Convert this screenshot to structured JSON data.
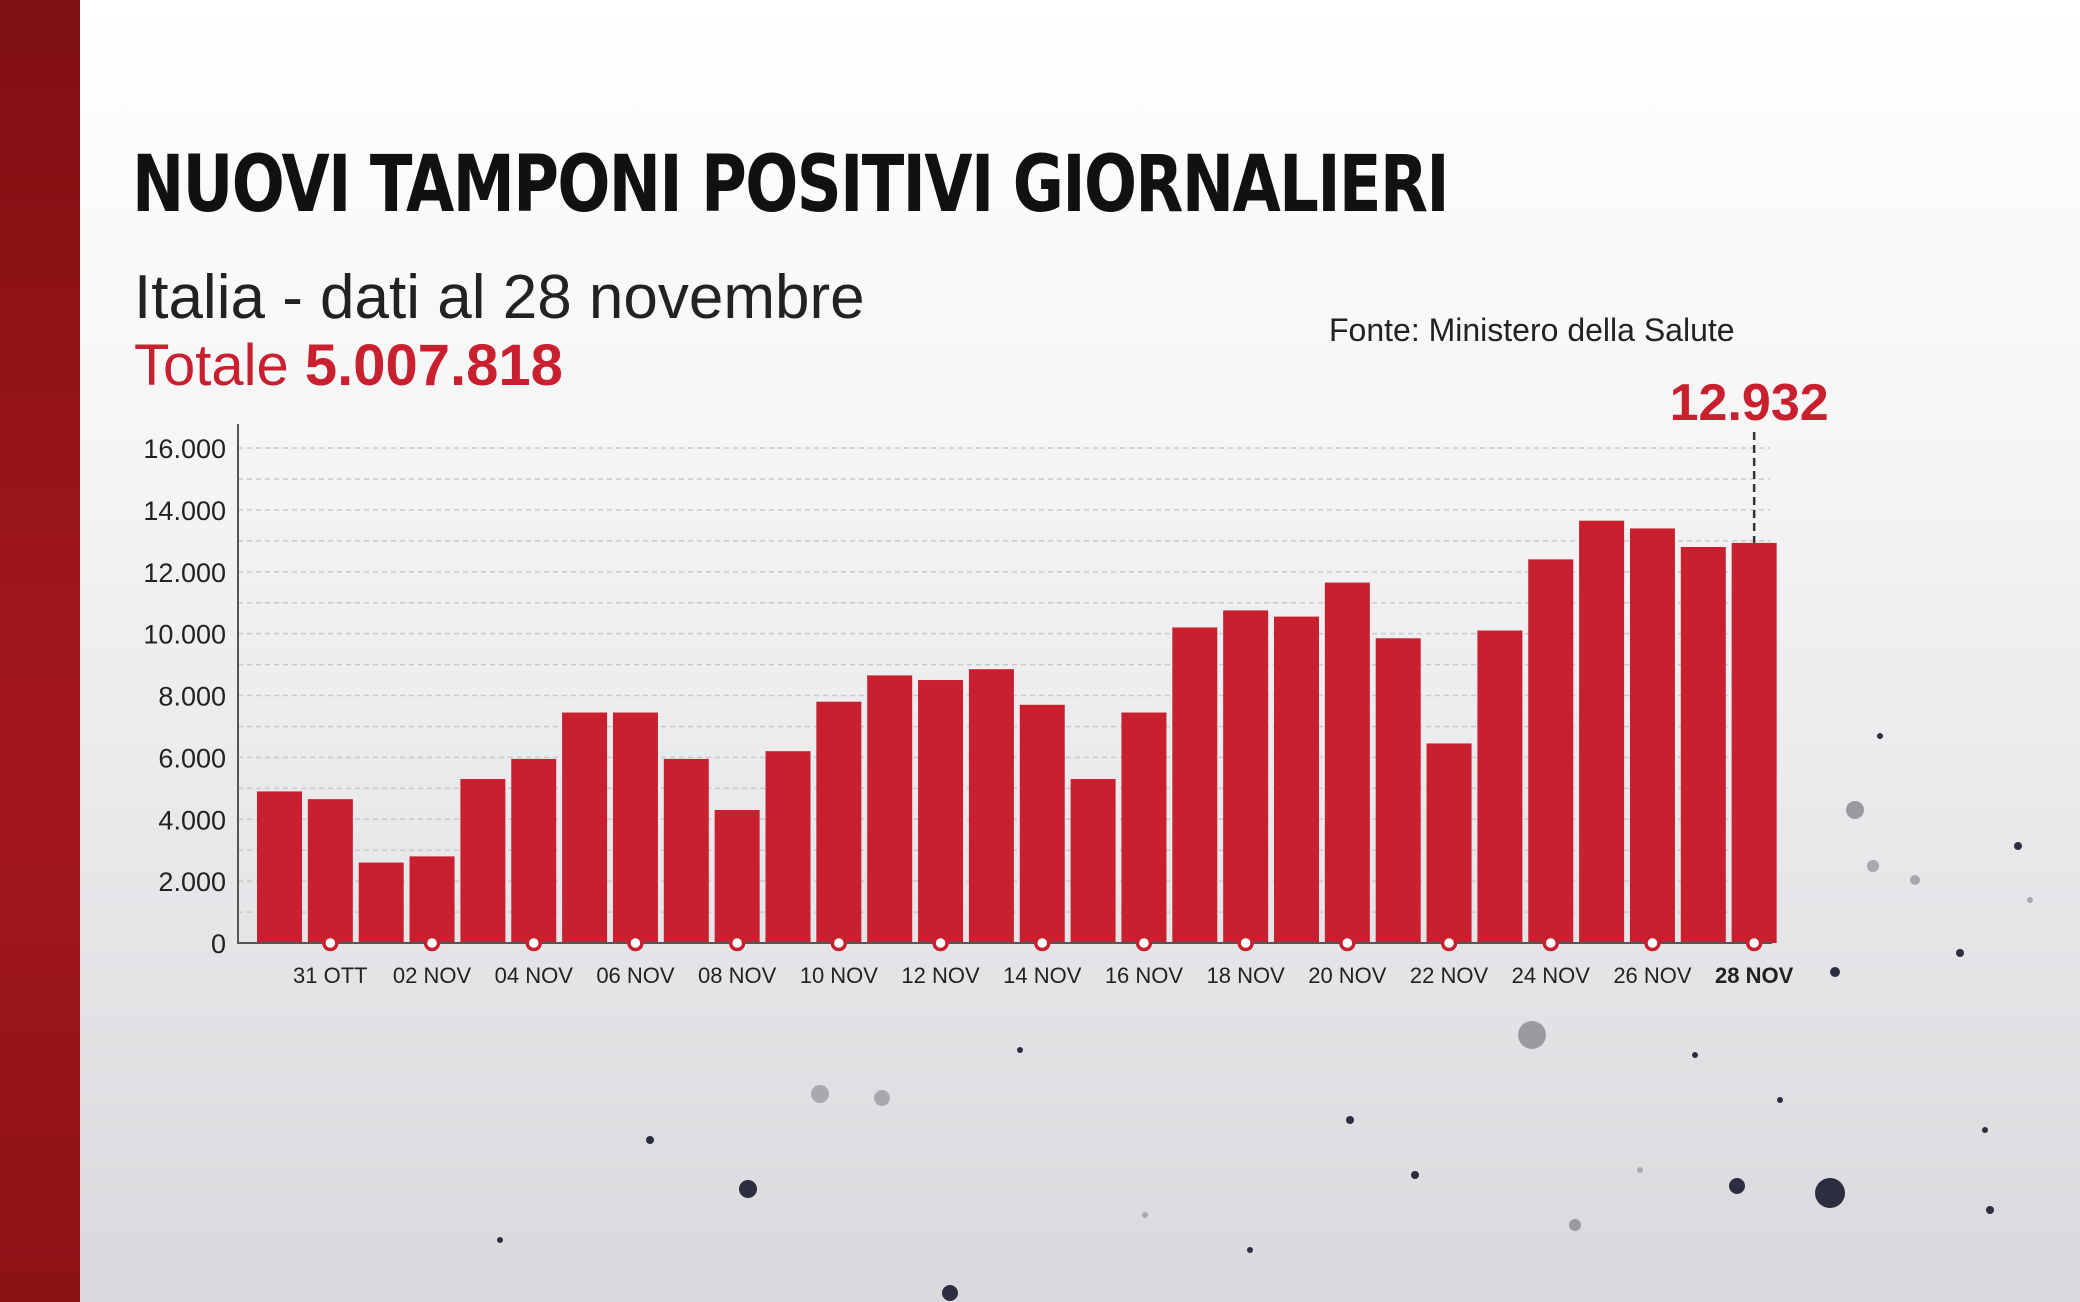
{
  "header": {
    "title": "NUOVI TAMPONI POSITIVI GIORNALIERI",
    "subtitle": "Italia - dati al 28 novembre",
    "total_label": "Totale",
    "total_value": "5.007.818",
    "source": "Fonte: Ministero della Salute"
  },
  "colors": {
    "bar": "#c8202f",
    "accent": "#c8202f",
    "band": "#9a1519"
  },
  "chart_data": {
    "type": "bar",
    "title": "NUOVI TAMPONI POSITIVI GIORNALIERI",
    "subtitle": "Italia - dati al 28 novembre",
    "xlabel": "",
    "ylabel": "",
    "ylim": [
      0,
      16000
    ],
    "yticks": [
      0,
      2000,
      4000,
      6000,
      8000,
      10000,
      12000,
      14000,
      16000
    ],
    "ytick_labels": [
      "0",
      "2.000",
      "4.000",
      "6.000",
      "8.000",
      "10.000",
      "12.000",
      "14.000",
      "16.000"
    ],
    "grid": true,
    "categories": [
      "30 OTT",
      "31 OTT",
      "01 NOV",
      "02 NOV",
      "03 NOV",
      "04 NOV",
      "05 NOV",
      "06 NOV",
      "07 NOV",
      "08 NOV",
      "09 NOV",
      "10 NOV",
      "11 NOV",
      "12 NOV",
      "13 NOV",
      "14 NOV",
      "15 NOV",
      "16 NOV",
      "17 NOV",
      "18 NOV",
      "19 NOV",
      "20 NOV",
      "21 NOV",
      "22 NOV",
      "23 NOV",
      "24 NOV",
      "25 NOV",
      "26 NOV",
      "27 NOV",
      "28 NOV"
    ],
    "shown_tick_labels": [
      "31 OTT",
      "02 NOV",
      "04 NOV",
      "06 NOV",
      "08 NOV",
      "10 NOV",
      "12 NOV",
      "14 NOV",
      "16 NOV",
      "18 NOV",
      "20 NOV",
      "22 NOV",
      "24 NOV",
      "26 NOV",
      "28 NOV"
    ],
    "values": [
      4900,
      4650,
      2600,
      2800,
      5300,
      5950,
      7450,
      7450,
      5950,
      4300,
      6200,
      7800,
      8650,
      8500,
      8850,
      7700,
      5300,
      7450,
      10200,
      10750,
      10550,
      11650,
      9850,
      6450,
      10100,
      12400,
      13650,
      13400,
      12800,
      12932
    ],
    "highlight": {
      "category": "28 NOV",
      "value_label": "12.932"
    }
  }
}
